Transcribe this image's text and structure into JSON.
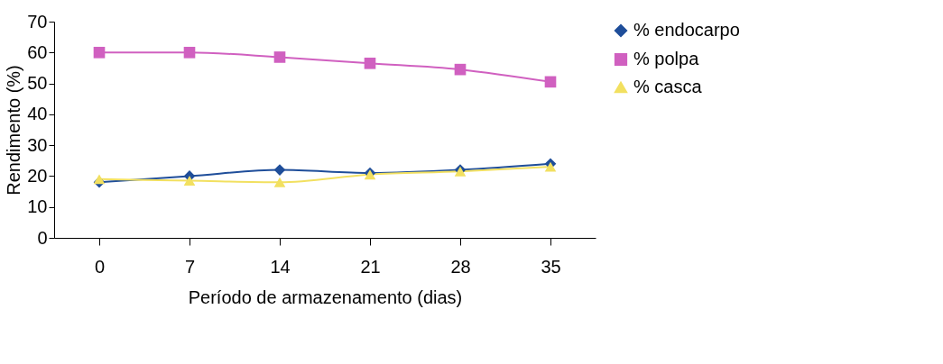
{
  "chart_data": {
    "type": "line",
    "xlabel": "Período de armazenamento (dias)",
    "ylabel": "Rendimento (%)",
    "categories": [
      "0",
      "7",
      "14",
      "21",
      "28",
      "35"
    ],
    "series": [
      {
        "name": "% endocarpo",
        "color": "#1f4e9a",
        "marker": "diamond",
        "values": [
          18,
          20,
          22,
          21,
          22,
          24
        ]
      },
      {
        "name": "% polpa",
        "color": "#d060c0",
        "marker": "square",
        "values": [
          60,
          60,
          58.5,
          56.5,
          54.5,
          50.5
        ]
      },
      {
        "name": "% casca",
        "color": "#f2e060",
        "marker": "triangle",
        "values": [
          19,
          18.5,
          18,
          20.5,
          21.5,
          23
        ]
      }
    ],
    "ylim": [
      0,
      70
    ],
    "yticks": [
      0,
      10,
      20,
      30,
      40,
      50,
      60,
      70
    ],
    "grid": false,
    "legend": "right",
    "line_style": "solid"
  }
}
